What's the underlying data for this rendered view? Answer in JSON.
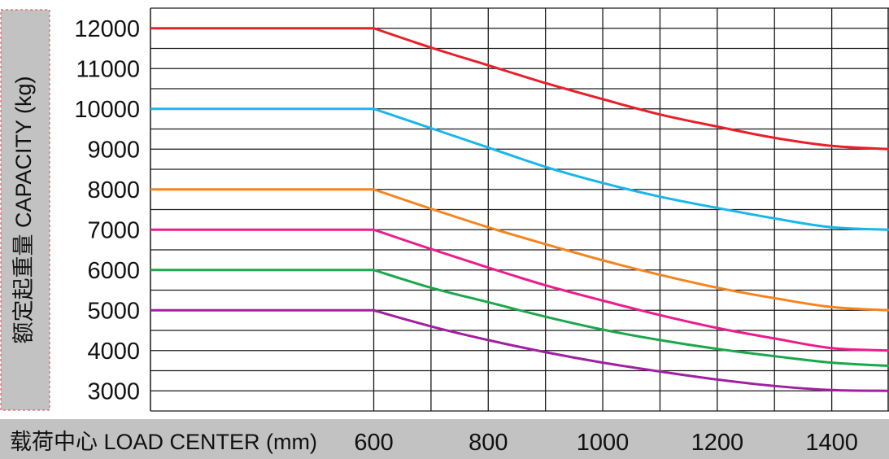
{
  "chart_data": {
    "type": "line",
    "ylabel": "额定起重量 CAPACITY (kg)",
    "xlabel": "载荷中心 LOAD CENTER (mm)",
    "x_ticks": [
      "600",
      "800",
      "1000",
      "1200",
      "1400"
    ],
    "y_ticks": [
      "12000",
      "11000",
      "10000",
      "9000",
      "8000",
      "7000",
      "6000",
      "5000",
      "4000",
      "3000"
    ],
    "xlim": [
      210,
      1500
    ],
    "ylim": [
      2500,
      12500
    ],
    "grid": true,
    "series": [
      {
        "color": "#e8202a",
        "x": [
          210,
          600,
          700,
          800,
          900,
          1000,
          1100,
          1200,
          1300,
          1400,
          1500
        ],
        "values": [
          12000,
          12000,
          11520,
          11080,
          10640,
          10240,
          9860,
          9560,
          9280,
          9080,
          9000
        ]
      },
      {
        "color": "#1ab6ea",
        "x": [
          210,
          600,
          700,
          800,
          900,
          1000,
          1100,
          1200,
          1300,
          1400,
          1500
        ],
        "values": [
          10000,
          10000,
          9520,
          9040,
          8560,
          8160,
          7820,
          7540,
          7280,
          7060,
          7000
        ]
      },
      {
        "color": "#f5841f",
        "x": [
          210,
          600,
          700,
          800,
          900,
          1000,
          1100,
          1200,
          1300,
          1400,
          1500
        ],
        "values": [
          8000,
          8000,
          7520,
          7060,
          6640,
          6240,
          5880,
          5560,
          5300,
          5080,
          5000
        ]
      },
      {
        "color": "#ec1c8c",
        "x": [
          210,
          600,
          700,
          800,
          900,
          1000,
          1100,
          1200,
          1300,
          1400,
          1500
        ],
        "values": [
          7000,
          7000,
          6520,
          6060,
          5620,
          5240,
          4880,
          4560,
          4300,
          4060,
          4000
        ]
      },
      {
        "color": "#1aa84b",
        "x": [
          210,
          600,
          700,
          800,
          900,
          1000,
          1100,
          1200,
          1300,
          1400,
          1500
        ],
        "values": [
          6000,
          6000,
          5560,
          5200,
          4840,
          4520,
          4260,
          4040,
          3860,
          3700,
          3620
        ]
      },
      {
        "color": "#a020a0",
        "x": [
          210,
          600,
          700,
          800,
          900,
          1000,
          1100,
          1200,
          1300,
          1400,
          1500
        ],
        "values": [
          5000,
          5000,
          4600,
          4260,
          3960,
          3700,
          3480,
          3280,
          3120,
          3020,
          3000
        ]
      }
    ]
  }
}
